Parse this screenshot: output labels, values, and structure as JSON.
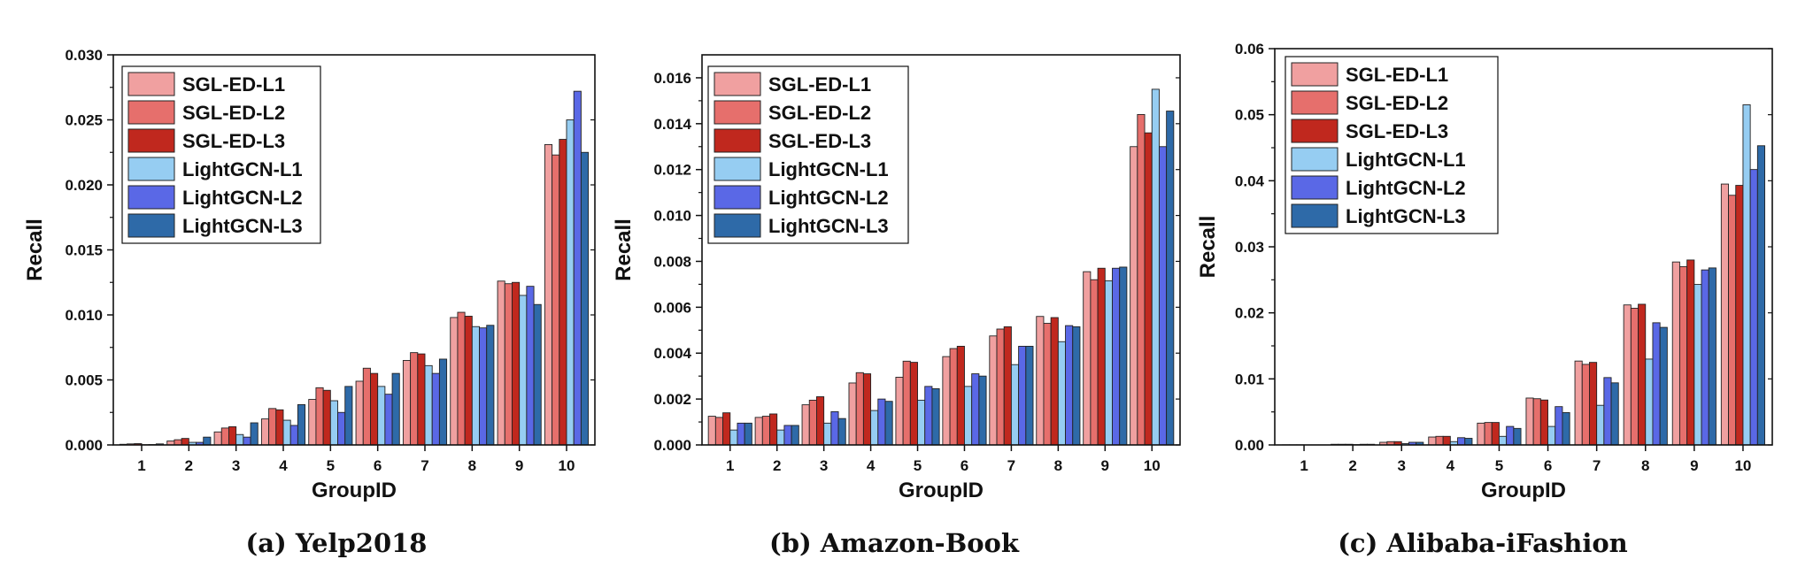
{
  "colors": {
    "SGL-ED-L1": "#f0a0a0",
    "SGL-ED-L2": "#e66f6c",
    "SGL-ED-L3": "#c0281e",
    "LightGCN-L1": "#96cdf2",
    "LightGCN-L2": "#5a68e6",
    "LightGCN-L3": "#2e6aa8"
  },
  "chart_data": [
    {
      "type": "bar",
      "caption": "(a) Yelp2018",
      "xlabel": "GroupID",
      "ylabel": "Recall",
      "categories": [
        "1",
        "2",
        "3",
        "4",
        "5",
        "6",
        "7",
        "8",
        "9",
        "10"
      ],
      "ylim": [
        0,
        0.03
      ],
      "yticks": [
        "0.000",
        "0.005",
        "0.010",
        "0.015",
        "0.020",
        "0.025",
        "0.030"
      ],
      "legend_position": "top-left",
      "series": [
        {
          "name": "SGL-ED-L1",
          "values": [
            5e-05,
            0.0003,
            0.001,
            0.002,
            0.0035,
            0.0049,
            0.0065,
            0.0098,
            0.0126,
            0.0231
          ]
        },
        {
          "name": "SGL-ED-L2",
          "values": [
            8e-05,
            0.0004,
            0.0013,
            0.0028,
            0.0044,
            0.0059,
            0.0071,
            0.0102,
            0.0124,
            0.0223
          ]
        },
        {
          "name": "SGL-ED-L3",
          "values": [
            0.0001,
            0.0005,
            0.0014,
            0.0027,
            0.0042,
            0.0055,
            0.007,
            0.0099,
            0.0125,
            0.0235
          ]
        },
        {
          "name": "LightGCN-L1",
          "values": [
            2e-05,
            0.0002,
            0.0008,
            0.0019,
            0.0034,
            0.0045,
            0.0061,
            0.0091,
            0.0115,
            0.025
          ]
        },
        {
          "name": "LightGCN-L2",
          "values": [
            3e-05,
            0.0002,
            0.0006,
            0.0015,
            0.0025,
            0.0039,
            0.0055,
            0.009,
            0.0122,
            0.0272
          ]
        },
        {
          "name": "LightGCN-L3",
          "values": [
            8e-05,
            0.0006,
            0.0017,
            0.0031,
            0.0045,
            0.0055,
            0.0066,
            0.0092,
            0.0108,
            0.0225
          ]
        }
      ]
    },
    {
      "type": "bar",
      "caption": "(b) Amazon-Book",
      "xlabel": "GroupID",
      "ylabel": "Recall",
      "categories": [
        "1",
        "2",
        "3",
        "4",
        "5",
        "6",
        "7",
        "8",
        "9",
        "10"
      ],
      "ylim": [
        0,
        0.017
      ],
      "yticks": [
        "0.000",
        "0.002",
        "0.004",
        "0.006",
        "0.008",
        "0.010",
        "0.012",
        "0.014",
        "0.016"
      ],
      "legend_position": "top-left",
      "series": [
        {
          "name": "SGL-ED-L1",
          "values": [
            0.00125,
            0.0012,
            0.00175,
            0.0027,
            0.00295,
            0.00385,
            0.00475,
            0.0056,
            0.00755,
            0.013
          ]
        },
        {
          "name": "SGL-ED-L2",
          "values": [
            0.0012,
            0.00125,
            0.00195,
            0.00315,
            0.00365,
            0.0042,
            0.00505,
            0.0053,
            0.0072,
            0.0144
          ]
        },
        {
          "name": "SGL-ED-L3",
          "values": [
            0.0014,
            0.00135,
            0.0021,
            0.0031,
            0.0036,
            0.0043,
            0.00515,
            0.00555,
            0.0077,
            0.0136
          ]
        },
        {
          "name": "LightGCN-L1",
          "values": [
            0.00065,
            0.00065,
            0.00095,
            0.0015,
            0.00195,
            0.00255,
            0.0035,
            0.0045,
            0.00715,
            0.0155
          ]
        },
        {
          "name": "LightGCN-L2",
          "values": [
            0.00095,
            0.00085,
            0.00145,
            0.002,
            0.00255,
            0.0031,
            0.0043,
            0.0052,
            0.0077,
            0.013
          ]
        },
        {
          "name": "LightGCN-L3",
          "values": [
            0.00095,
            0.00085,
            0.00115,
            0.0019,
            0.00245,
            0.003,
            0.0043,
            0.00515,
            0.00775,
            0.01455
          ]
        }
      ]
    },
    {
      "type": "bar",
      "caption": "(c) Alibaba-iFashion",
      "xlabel": "GroupID",
      "ylabel": "Recall",
      "categories": [
        "1",
        "2",
        "3",
        "4",
        "5",
        "6",
        "7",
        "8",
        "9",
        "10"
      ],
      "ylim": [
        0,
        0.06
      ],
      "yticks": [
        "0.00",
        "0.01",
        "0.02",
        "0.03",
        "0.04",
        "0.05",
        "0.06"
      ],
      "legend_position": "top-left",
      "series": [
        {
          "name": "SGL-ED-L1",
          "values": [
            2e-05,
            0.0001,
            0.0004,
            0.0012,
            0.0033,
            0.0071,
            0.0127,
            0.0212,
            0.0277,
            0.0395
          ]
        },
        {
          "name": "SGL-ED-L2",
          "values": [
            2e-05,
            0.0001,
            0.0005,
            0.0013,
            0.0034,
            0.007,
            0.0122,
            0.0207,
            0.027,
            0.0378
          ]
        },
        {
          "name": "SGL-ED-L3",
          "values": [
            2e-05,
            0.0001,
            0.0005,
            0.0013,
            0.0034,
            0.0068,
            0.0125,
            0.0213,
            0.028,
            0.0393
          ]
        },
        {
          "name": "LightGCN-L1",
          "values": [
            1e-05,
            5e-05,
            0.0002,
            0.0005,
            0.0013,
            0.0028,
            0.006,
            0.013,
            0.0243,
            0.0515
          ]
        },
        {
          "name": "LightGCN-L2",
          "values": [
            1e-05,
            0.0001,
            0.0004,
            0.0011,
            0.0028,
            0.0058,
            0.0102,
            0.0185,
            0.0265,
            0.0417
          ]
        },
        {
          "name": "LightGCN-L3",
          "values": [
            1e-05,
            0.0001,
            0.0004,
            0.001,
            0.0025,
            0.0049,
            0.0094,
            0.0178,
            0.0268,
            0.0453
          ]
        }
      ]
    }
  ]
}
